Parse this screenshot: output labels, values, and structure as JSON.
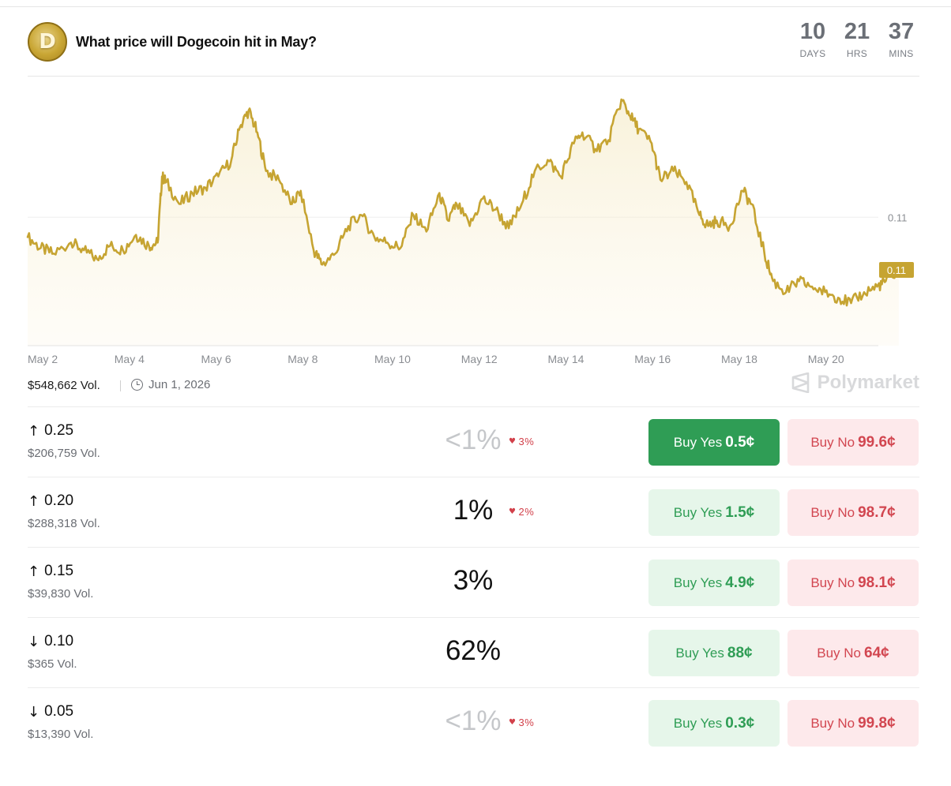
{
  "market": {
    "title": "What price will Dogecoin hit in May?",
    "logo_letter": "D",
    "logo_icon": "dogecoin-logo",
    "countdown": [
      {
        "value": "10",
        "label": "DAYS"
      },
      {
        "value": "21",
        "label": "HRS"
      },
      {
        "value": "37",
        "label": "MINS"
      }
    ],
    "volume": "$548,662 Vol.",
    "end_date": "Jun 1, 2026",
    "brand": "Polymarket",
    "current_price_tag": "0.11"
  },
  "colors": {
    "line": "#c6a432",
    "yes_green": "#2f9d55",
    "no_red": "#d24650",
    "change_red": "#d2404a"
  },
  "chart_data": {
    "type": "area",
    "x_tick_labels": [
      "May 2",
      "May 4",
      "May 6",
      "May 8",
      "May 10",
      "May 12",
      "May 14",
      "May 16",
      "May 18",
      "May 20"
    ],
    "y_tick_labels": [
      "0.11"
    ],
    "series": [
      {
        "x_days": [
          1.0,
          1.3,
          1.6,
          2.0,
          2.3,
          2.6,
          2.9,
          3.2,
          3.5,
          3.8,
          4.0,
          4.1,
          4.2,
          4.5,
          4.8,
          5.1,
          5.4,
          5.7,
          5.9,
          6.1,
          6.3,
          6.5,
          6.8,
          7.1,
          7.3,
          7.6,
          7.8,
          8.1,
          8.4,
          8.7,
          9.0,
          9.3,
          9.6,
          9.9,
          10.2,
          10.5,
          10.7,
          10.9,
          11.2,
          11.5,
          11.8,
          12.1,
          12.4,
          12.7,
          13.0,
          13.3,
          13.6,
          13.8,
          14.1,
          14.4,
          14.7,
          14.9,
          15.1,
          15.4,
          15.6,
          15.9,
          16.2,
          16.5,
          16.7,
          16.9,
          17.2,
          17.5,
          17.7,
          18.0,
          18.2,
          18.5,
          18.8,
          19.1,
          19.4,
          19.7,
          20.0,
          20.3,
          20.6,
          20.8,
          21.1
        ],
        "values": [
          0.109,
          0.108,
          0.1075,
          0.1085,
          0.1078,
          0.107,
          0.1082,
          0.1078,
          0.1092,
          0.1082,
          0.1085,
          0.1145,
          0.114,
          0.112,
          0.113,
          0.1135,
          0.1145,
          0.116,
          0.119,
          0.1205,
          0.1185,
          0.115,
          0.1142,
          0.112,
          0.1132,
          0.1078,
          0.1065,
          0.1075,
          0.11,
          0.111,
          0.109,
          0.1085,
          0.108,
          0.111,
          0.1095,
          0.113,
          0.1105,
          0.112,
          0.11,
          0.1125,
          0.1115,
          0.1098,
          0.112,
          0.115,
          0.116,
          0.1145,
          0.1175,
          0.1185,
          0.117,
          0.1178,
          0.1215,
          0.12,
          0.1188,
          0.1175,
          0.1142,
          0.115,
          0.114,
          0.111,
          0.11,
          0.1105,
          0.11,
          0.1132,
          0.112,
          0.1075,
          0.105,
          0.104,
          0.105,
          0.1045,
          0.104,
          0.1035,
          0.103,
          0.104,
          0.1045,
          0.105,
          0.106
        ]
      }
    ]
  },
  "rows": [
    {
      "direction": "↑",
      "direction_icon": "arrow-up-icon",
      "target": "0.25",
      "volume": "$206,759 Vol.",
      "chance": "<1%",
      "low": true,
      "change": "3%",
      "yes_label": "Buy Yes",
      "yes_price": "0.5¢",
      "no_label": "Buy No",
      "no_price": "99.6¢",
      "active": true
    },
    {
      "direction": "↑",
      "direction_icon": "arrow-up-icon",
      "target": "0.20",
      "volume": "$288,318 Vol.",
      "chance": "1%",
      "low": false,
      "change": "2%",
      "yes_label": "Buy Yes",
      "yes_price": "1.5¢",
      "no_label": "Buy No",
      "no_price": "98.7¢",
      "active": false
    },
    {
      "direction": "↑",
      "direction_icon": "arrow-up-icon",
      "target": "0.15",
      "volume": "$39,830 Vol.",
      "chance": "3%",
      "low": false,
      "change": "",
      "yes_label": "Buy Yes",
      "yes_price": "4.9¢",
      "no_label": "Buy No",
      "no_price": "98.1¢",
      "active": false
    },
    {
      "direction": "↓",
      "direction_icon": "arrow-down-icon",
      "target": "0.10",
      "volume": "$365 Vol.",
      "chance": "62%",
      "low": false,
      "change": "",
      "yes_label": "Buy Yes",
      "yes_price": "88¢",
      "no_label": "Buy No",
      "no_price": "64¢",
      "active": false
    },
    {
      "direction": "↓",
      "direction_icon": "arrow-down-icon",
      "target": "0.05",
      "volume": "$13,390 Vol.",
      "chance": "<1%",
      "low": true,
      "change": "3%",
      "yes_label": "Buy Yes",
      "yes_price": "0.3¢",
      "no_label": "Buy No",
      "no_price": "99.8¢",
      "active": false
    }
  ]
}
